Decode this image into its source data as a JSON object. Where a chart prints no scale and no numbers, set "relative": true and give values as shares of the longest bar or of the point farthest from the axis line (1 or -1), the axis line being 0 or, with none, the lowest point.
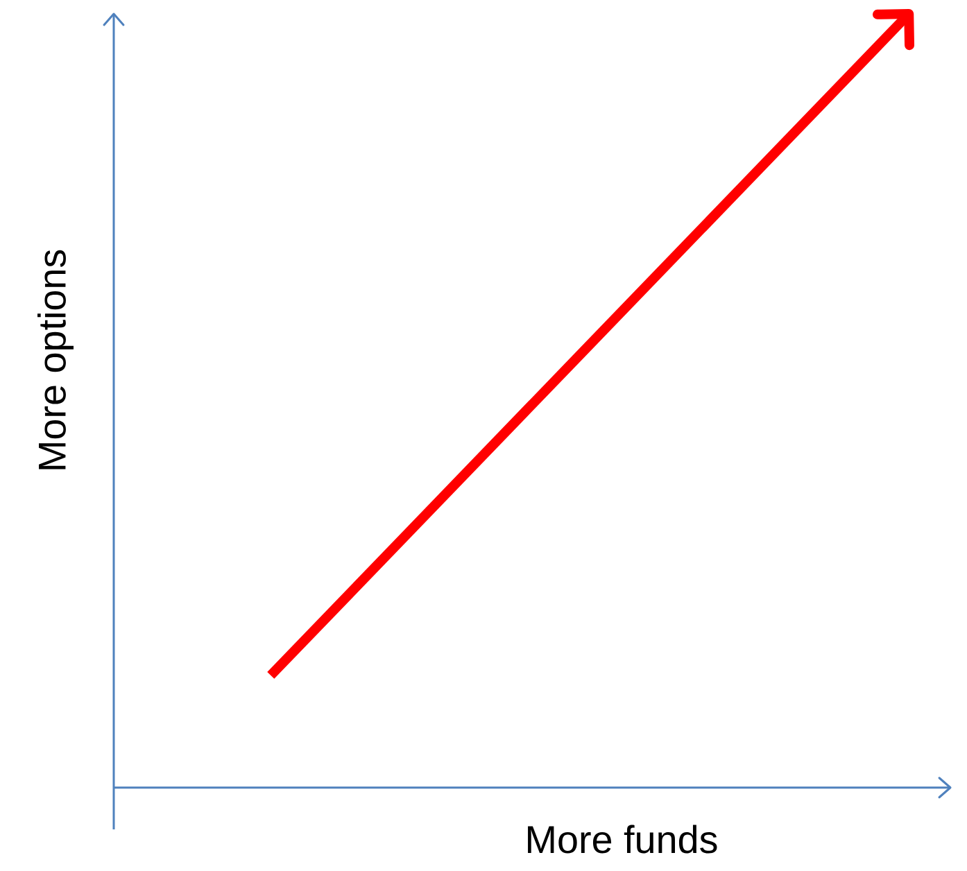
{
  "chart_data": {
    "type": "line",
    "xlabel": "More funds",
    "ylabel": "More options",
    "relative": true,
    "categories": [
      null,
      null
    ],
    "series": [
      {
        "color": "#ff0000",
        "values": [
          0.145,
          1
        ]
      }
    ],
    "marker": "none",
    "line_style": "solid"
  }
}
